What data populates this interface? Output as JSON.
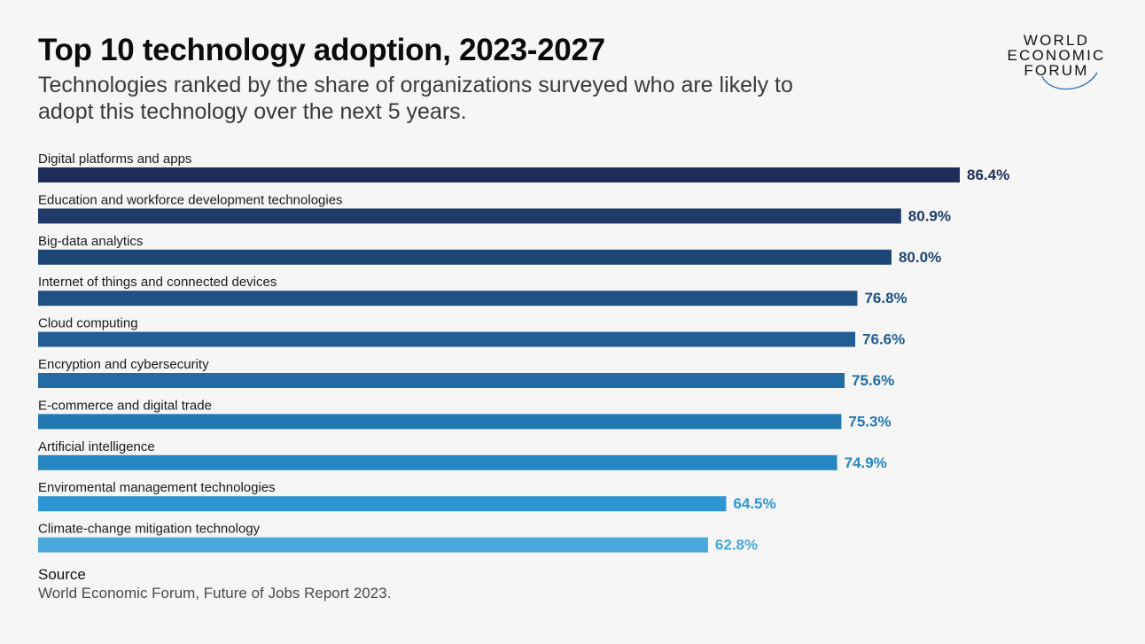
{
  "header": {
    "title": "Top 10 technology adoption, 2023-2027",
    "subtitle": "Technologies ranked by the share of organizations surveyed who are likely to adopt this technology over the next 5 years."
  },
  "logo": {
    "line1": "WORLD",
    "line2": "ECONOMIC",
    "line3": "FORUM"
  },
  "source": {
    "label": "Source",
    "text": "World Economic Forum, Future of Jobs Report 2023."
  },
  "chart_data": {
    "type": "bar",
    "orientation": "horizontal",
    "categories": [
      "Digital platforms and apps",
      "Education and workforce development technologies",
      "Big-data analytics",
      "Internet of things and connected devices",
      "Cloud computing",
      "Encryption and cybersecurity",
      "E-commerce and digital trade",
      "Artificial intelligence",
      "Enviromental management technologies",
      "Climate-change mitigation technology"
    ],
    "values": [
      86.4,
      80.9,
      80.0,
      76.8,
      76.6,
      75.6,
      75.3,
      74.9,
      64.5,
      62.8
    ],
    "value_labels": [
      "86.4%",
      "80.9%",
      "80.0%",
      "76.8%",
      "76.6%",
      "75.6%",
      "75.3%",
      "74.9%",
      "64.5%",
      "62.8%"
    ],
    "colors": [
      "#1f2d5a",
      "#1f3a68",
      "#1e4675",
      "#1f5183",
      "#225e93",
      "#226ca3",
      "#2478b2",
      "#2686c2",
      "#2e97d3",
      "#49a8dc"
    ],
    "xlim": [
      0,
      100
    ],
    "grid": false,
    "legend": "none"
  }
}
